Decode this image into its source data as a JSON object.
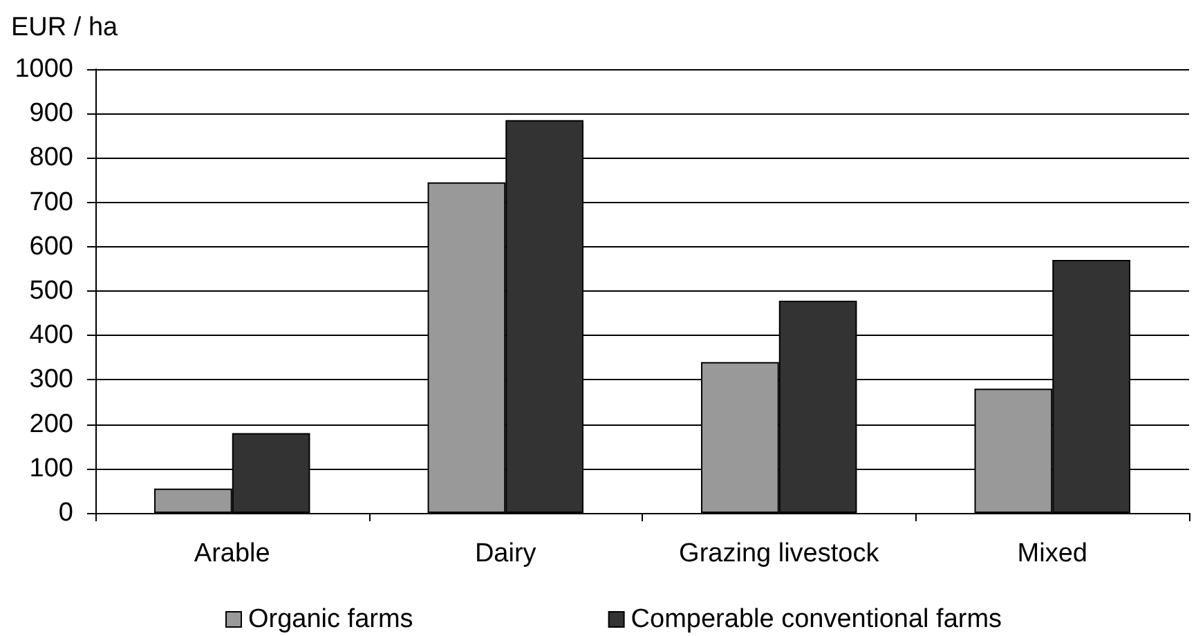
{
  "chart_data": {
    "type": "bar",
    "ylabel": "EUR / ha",
    "categories": [
      "Arable",
      "Dairy",
      "Grazing livestock",
      "Mixed"
    ],
    "series": [
      {
        "name": "Organic farms",
        "color": "#999999",
        "values": [
          55,
          745,
          340,
          280
        ]
      },
      {
        "name": "Comperable conventional farms",
        "color": "#333333",
        "values": [
          180,
          885,
          478,
          570
        ]
      }
    ],
    "ylim": [
      0,
      1000
    ],
    "yticks": [
      0,
      100,
      200,
      300,
      400,
      500,
      600,
      700,
      800,
      900,
      1000
    ],
    "grid": "y",
    "legend": "bottom"
  }
}
